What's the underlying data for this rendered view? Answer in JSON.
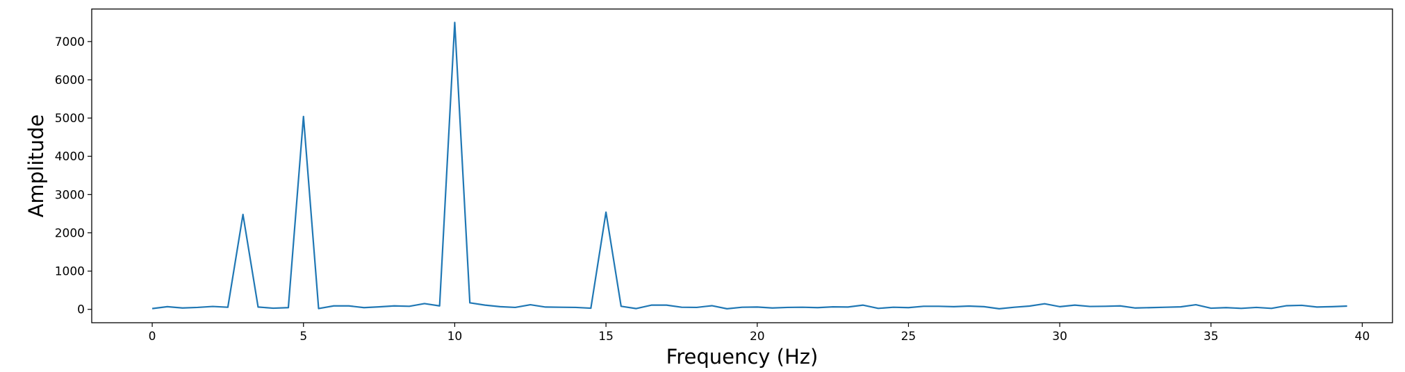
{
  "chart_data": {
    "type": "line",
    "title": "",
    "xlabel": "Frequency (Hz)",
    "ylabel": "Amplitude",
    "xlim": [
      -2,
      41
    ],
    "ylim": [
      -350,
      7850
    ],
    "grid": false,
    "xticks": [
      0,
      5,
      10,
      15,
      20,
      25,
      30,
      35,
      40
    ],
    "xtick_labels": [
      "0",
      "5",
      "10",
      "15",
      "20",
      "25",
      "30",
      "35",
      "40"
    ],
    "yticks": [
      0,
      1000,
      2000,
      3000,
      4000,
      5000,
      6000,
      7000
    ],
    "ytick_labels": [
      "0",
      "1000",
      "2000",
      "3000",
      "4000",
      "5000",
      "6000",
      "7000"
    ],
    "series": [
      {
        "color": "#1f77b4",
        "x": [
          0,
          0.5,
          1,
          1.5,
          2,
          2.5,
          3,
          3.5,
          4,
          4.5,
          5,
          5.5,
          6,
          6.5,
          7,
          7.5,
          8,
          8.5,
          9,
          9.5,
          10,
          10.5,
          11,
          11.5,
          12,
          12.5,
          13,
          13.5,
          14,
          14.5,
          15,
          15.5,
          16,
          16.5,
          17,
          17.5,
          18,
          18.5,
          19,
          19.5,
          20,
          20.5,
          21,
          21.5,
          22,
          22.5,
          23,
          23.5,
          24,
          24.5,
          25,
          25.5,
          26,
          26.5,
          27,
          27.5,
          28,
          28.5,
          29,
          29.5,
          30,
          30.5,
          31,
          31.5,
          32,
          32.5,
          33,
          33.5,
          34,
          34.5,
          35,
          35.5,
          36,
          36.5,
          37,
          37.5,
          38,
          38.5,
          39,
          39.5
        ],
        "y": [
          20,
          70,
          35,
          50,
          75,
          55,
          2480,
          60,
          30,
          45,
          5040,
          20,
          90,
          90,
          45,
          65,
          90,
          80,
          150,
          90,
          7500,
          170,
          110,
          70,
          50,
          120,
          60,
          55,
          50,
          30,
          2540,
          80,
          20,
          110,
          110,
          55,
          50,
          95,
          15,
          55,
          60,
          35,
          50,
          55,
          45,
          65,
          60,
          110,
          25,
          55,
          45,
          80,
          80,
          70,
          85,
          70,
          15,
          55,
          85,
          145,
          70,
          110,
          75,
          80,
          90,
          35,
          45,
          55,
          65,
          120,
          30,
          45,
          25,
          50,
          25,
          95,
          105,
          60,
          70,
          85
        ]
      }
    ]
  }
}
